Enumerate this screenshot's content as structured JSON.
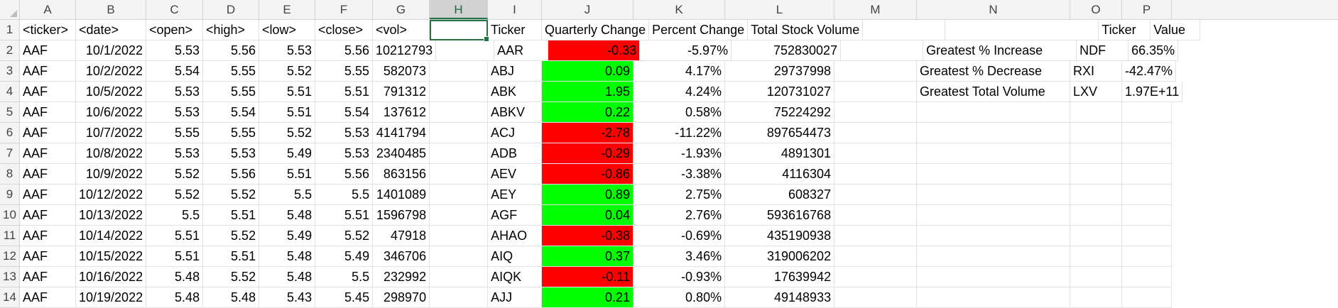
{
  "columns": [
    "A",
    "B",
    "C",
    "D",
    "E",
    "F",
    "G",
    "H",
    "I",
    "J",
    "K",
    "L",
    "M",
    "N",
    "O",
    "P"
  ],
  "active_column": "H",
  "row_numbers": [
    "1",
    "2",
    "3",
    "4",
    "5",
    "6",
    "7",
    "8",
    "9",
    "10",
    "11",
    "12",
    "13",
    "14"
  ],
  "colors": {
    "negative_fill": "#ff0000",
    "positive_fill": "#00ff00",
    "selection": "#217346"
  },
  "rows": [
    [
      "<ticker>",
      "<date>",
      "<open>",
      "<high>",
      "<low>",
      "<close>",
      "<vol>",
      "",
      "Ticker",
      "Quarterly Change",
      "Percent Change",
      "Total Stock Volume",
      "",
      "",
      "Ticker",
      "Value"
    ],
    [
      "AAF",
      "10/1/2022",
      "5.53",
      "5.56",
      "5.53",
      "5.56",
      "10212793",
      "",
      "AAR",
      "-0.33",
      "-5.97%",
      "752830027",
      "",
      "Greatest % Increase",
      "NDF",
      "66.35%"
    ],
    [
      "AAF",
      "10/2/2022",
      "5.54",
      "5.55",
      "5.52",
      "5.55",
      "582073",
      "",
      "ABJ",
      "0.09",
      "4.17%",
      "29737998",
      "",
      "Greatest % Decrease",
      "RXI",
      "-42.47%"
    ],
    [
      "AAF",
      "10/5/2022",
      "5.53",
      "5.55",
      "5.51",
      "5.51",
      "791312",
      "",
      "ABK",
      "1.95",
      "4.24%",
      "120731027",
      "",
      "Greatest Total Volume",
      "LXV",
      "1.97E+11"
    ],
    [
      "AAF",
      "10/6/2022",
      "5.53",
      "5.54",
      "5.51",
      "5.54",
      "137612",
      "",
      "ABKV",
      "0.22",
      "0.58%",
      "75224292",
      "",
      "",
      "",
      ""
    ],
    [
      "AAF",
      "10/7/2022",
      "5.55",
      "5.55",
      "5.52",
      "5.53",
      "4141794",
      "",
      "ACJ",
      "-2.78",
      "-11.22%",
      "897654473",
      "",
      "",
      "",
      ""
    ],
    [
      "AAF",
      "10/8/2022",
      "5.53",
      "5.53",
      "5.49",
      "5.53",
      "2340485",
      "",
      "ADB",
      "-0.29",
      "-1.93%",
      "4891301",
      "",
      "",
      "",
      ""
    ],
    [
      "AAF",
      "10/9/2022",
      "5.52",
      "5.56",
      "5.51",
      "5.56",
      "863156",
      "",
      "AEV",
      "-0.86",
      "-3.38%",
      "4116304",
      "",
      "",
      "",
      ""
    ],
    [
      "AAF",
      "10/12/2022",
      "5.52",
      "5.52",
      "5.5",
      "5.5",
      "1401089",
      "",
      "AEY",
      "0.89",
      "2.75%",
      "608327",
      "",
      "",
      "",
      ""
    ],
    [
      "AAF",
      "10/13/2022",
      "5.5",
      "5.51",
      "5.48",
      "5.51",
      "1596798",
      "",
      "AGF",
      "0.04",
      "2.76%",
      "593616768",
      "",
      "",
      "",
      ""
    ],
    [
      "AAF",
      "10/14/2022",
      "5.51",
      "5.52",
      "5.49",
      "5.52",
      "47918",
      "",
      "AHAO",
      "-0.38",
      "-0.69%",
      "435190938",
      "",
      "",
      "",
      ""
    ],
    [
      "AAF",
      "10/15/2022",
      "5.51",
      "5.51",
      "5.48",
      "5.49",
      "346706",
      "",
      "AIQ",
      "0.37",
      "3.46%",
      "319006202",
      "",
      "",
      "",
      ""
    ],
    [
      "AAF",
      "10/16/2022",
      "5.48",
      "5.52",
      "5.48",
      "5.5",
      "232992",
      "",
      "AIQK",
      "-0.11",
      "-0.93%",
      "17639942",
      "",
      "",
      "",
      ""
    ],
    [
      "AAF",
      "10/19/2022",
      "5.48",
      "5.48",
      "5.43",
      "5.45",
      "298970",
      "",
      "AJJ",
      "0.21",
      "0.80%",
      "49148933",
      "",
      "",
      "",
      ""
    ]
  ]
}
